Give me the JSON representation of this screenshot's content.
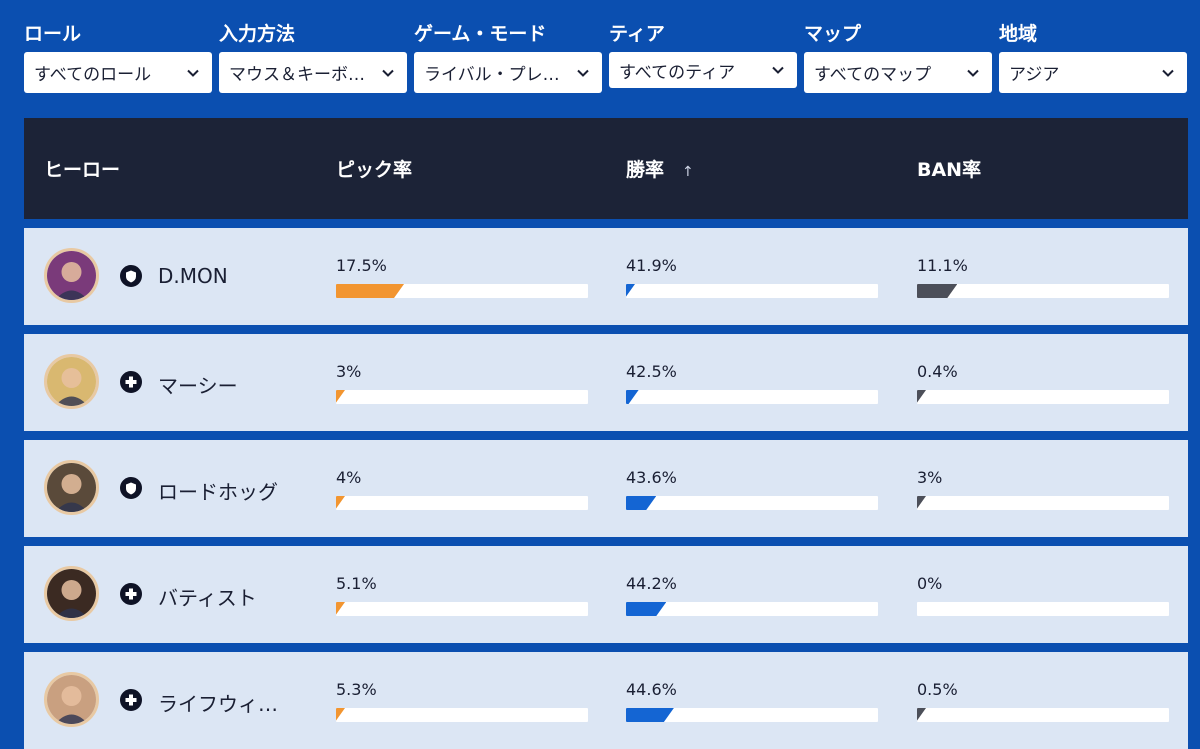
{
  "filters": [
    {
      "label": "ロール",
      "value": "すべてのロール"
    },
    {
      "label": "入力方法",
      "value": "マウス＆キーボ…"
    },
    {
      "label": "ゲーム・モード",
      "value": "ライバル・プレ…"
    },
    {
      "label": "ティア",
      "value": "すべてのティア"
    },
    {
      "label": "マップ",
      "value": "すべてのマップ"
    },
    {
      "label": "地域",
      "value": "アジア"
    }
  ],
  "table": {
    "headers": {
      "hero": "ヒーロー",
      "pick": "ピック率",
      "win": "勝率",
      "ban": "BAN率",
      "sort_icon": "↑"
    },
    "rows": [
      {
        "name": "D.MON",
        "role": "tank-icon",
        "pick": "17.5%",
        "win": "41.9%",
        "ban": "11.1%",
        "pick_frac": 0.27,
        "win_frac": 0.04,
        "ban_frac": 0.16,
        "avatar_color": "#7a3a7a"
      },
      {
        "name": "マーシー",
        "role": "support-icon",
        "pick": "3%",
        "win": "42.5%",
        "ban": "0.4%",
        "pick_frac": 0.02,
        "win_frac": 0.05,
        "ban_frac": 0.015,
        "avatar_color": "#d9b870"
      },
      {
        "name": "ロードホッグ",
        "role": "tank-icon",
        "pick": "4%",
        "win": "43.6%",
        "ban": "3%",
        "pick_frac": 0.03,
        "win_frac": 0.12,
        "ban_frac": 0.035,
        "avatar_color": "#5a4a3a"
      },
      {
        "name": "バティスト",
        "role": "support-icon",
        "pick": "5.1%",
        "win": "44.2%",
        "ban": "0%",
        "pick_frac": 0.04,
        "win_frac": 0.16,
        "ban_frac": 0,
        "avatar_color": "#3b2a22"
      },
      {
        "name": "ライフウィ…",
        "role": "support-icon",
        "pick": "5.3%",
        "win": "44.6%",
        "ban": "0.5%",
        "pick_frac": 0.04,
        "win_frac": 0.19,
        "ban_frac": 0.02,
        "avatar_color": "#c9a080"
      }
    ]
  },
  "colors": {
    "pick": "#f29530",
    "win": "#1465d3",
    "ban": "#4c4f59",
    "header": "#1c2337",
    "row": "#dce6f4",
    "background": "#0b4fb0"
  }
}
